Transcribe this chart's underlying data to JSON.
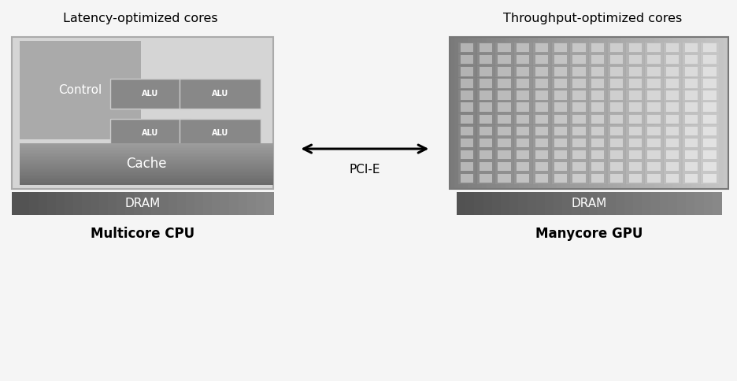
{
  "bg_color": "#f5f5f5",
  "cpu_title": "Latency-optimized cores",
  "gpu_title": "Throughput-optimized cores",
  "cpu_label": "Multicore CPU",
  "gpu_label": "Manycore GPU",
  "pcie_label": "PCI-E",
  "control_label": "Control",
  "cache_label": "Cache",
  "dram_label": "DRAM",
  "alu_label": "ALU",
  "gpu_rows": 12,
  "gpu_cols": 14
}
